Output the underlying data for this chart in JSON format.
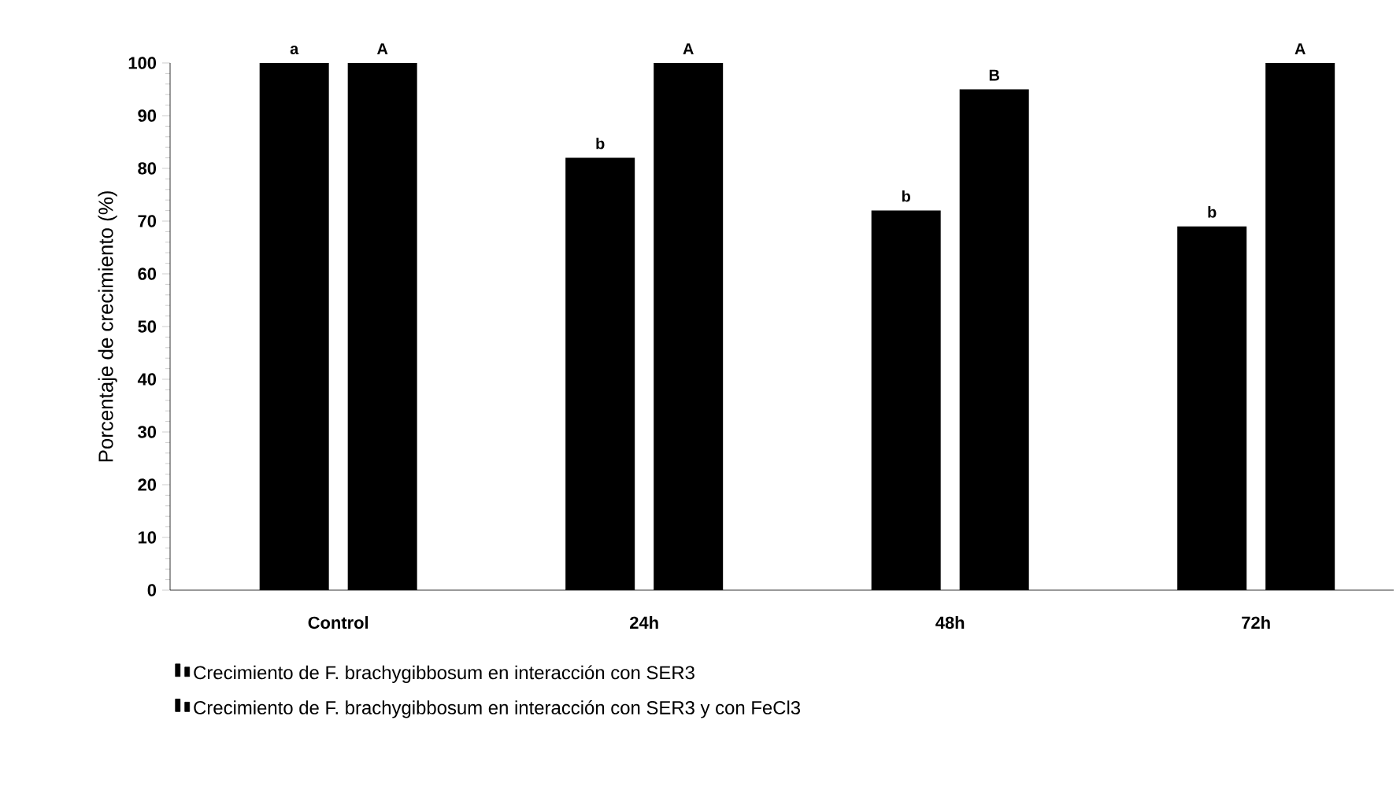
{
  "chart_data": {
    "type": "bar",
    "ylabel": "Porcentaje de crecimiento (%)",
    "categories": [
      "Control",
      "24h",
      "48h",
      "72h"
    ],
    "series": [
      {
        "name": "Crecimiento de F. brachygibbosum en interacción con SER3",
        "color": "#000000",
        "values": [
          100,
          82,
          72,
          69
        ],
        "value_labels": [
          "a",
          "b",
          "b",
          "b"
        ]
      },
      {
        "name": "Crecimiento de F. brachygibbosum en interacción con SER3 y con FeCl3",
        "color": "#000000",
        "values": [
          100,
          100,
          95,
          100
        ],
        "value_labels": [
          "A",
          "A",
          "B",
          "A"
        ]
      }
    ],
    "ylim": [
      0,
      100
    ],
    "yticks": [
      0,
      10,
      20,
      30,
      40,
      50,
      60,
      70,
      80,
      90,
      100
    ],
    "legend": "bottom",
    "grid": false
  }
}
